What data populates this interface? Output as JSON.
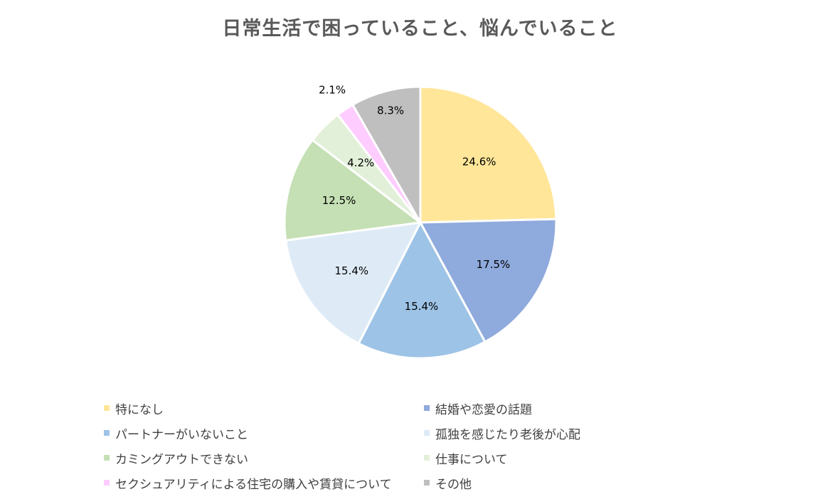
{
  "chart_data": {
    "type": "pie",
    "title": "日常生活で困っていること、悩んでいること",
    "slices": [
      {
        "label": "特になし",
        "value": 24.6,
        "display": "24.6%",
        "color": "#ffe699"
      },
      {
        "label": "結婚や恋愛の話題",
        "value": 17.5,
        "display": "17.5%",
        "color": "#8faadc"
      },
      {
        "label": "パートナーがいないこと",
        "value": 15.4,
        "display": "15.4%",
        "color": "#9dc3e6"
      },
      {
        "label": "孤独を感じたり老後が心配",
        "value": 15.4,
        "display": "15.4%",
        "color": "#deebf7"
      },
      {
        "label": "カミングアウトできない",
        "value": 12.5,
        "display": "12.5%",
        "color": "#c5e0b4"
      },
      {
        "label": "仕事について",
        "value": 4.2,
        "display": "4.2%",
        "color": "#e2f0d9"
      },
      {
        "label": "セクシュアリティによる住宅の購入や賃貸について",
        "value": 2.1,
        "display": "2.1%",
        "color": "#ffccff"
      },
      {
        "label": "その他",
        "value": 8.3,
        "display": "8.3%",
        "color": "#bfbfbf"
      }
    ],
    "legend_position": "bottom"
  }
}
